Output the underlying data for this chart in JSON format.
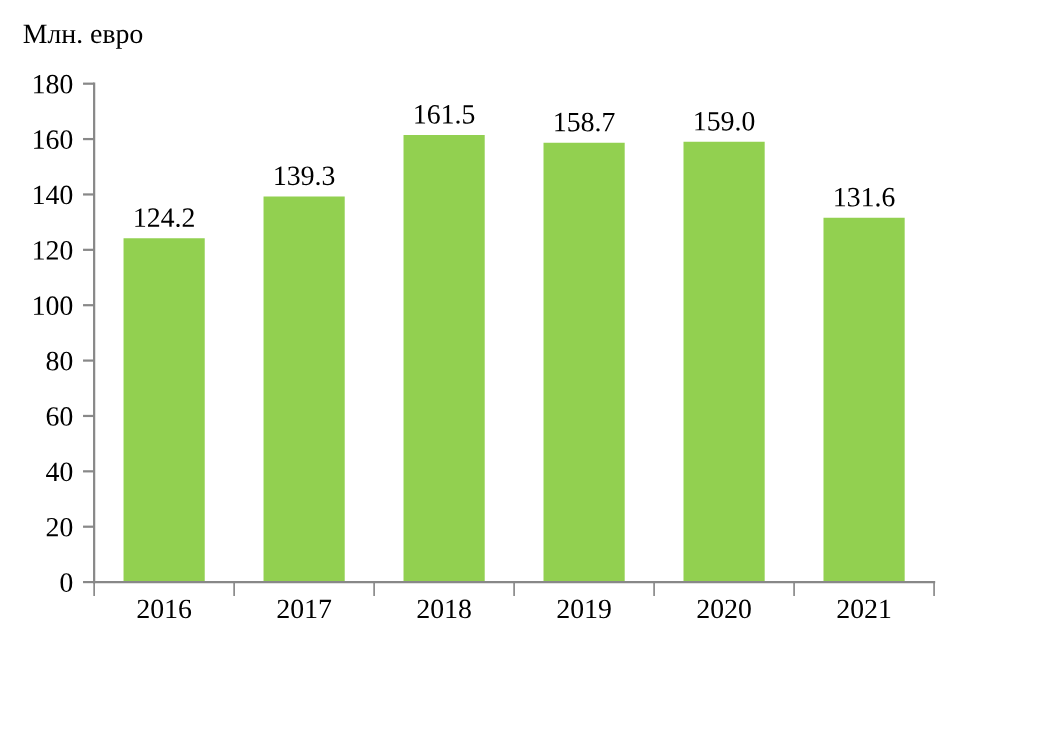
{
  "chart_data": {
    "type": "bar",
    "ylabel": "Млн. евро",
    "categories": [
      "2016",
      "2017",
      "2018",
      "2019",
      "2020",
      "2021"
    ],
    "values": [
      124.2,
      139.3,
      161.5,
      158.7,
      159.0,
      131.6
    ],
    "value_labels": [
      "124.2",
      "139.3",
      "161.5",
      "158.7",
      "159.0",
      "131.6"
    ],
    "color": "#92d050",
    "ylim": [
      0,
      180
    ],
    "yticks": [
      0,
      20,
      40,
      60,
      80,
      100,
      120,
      140,
      160,
      180
    ],
    "grid": false,
    "legend": false
  }
}
